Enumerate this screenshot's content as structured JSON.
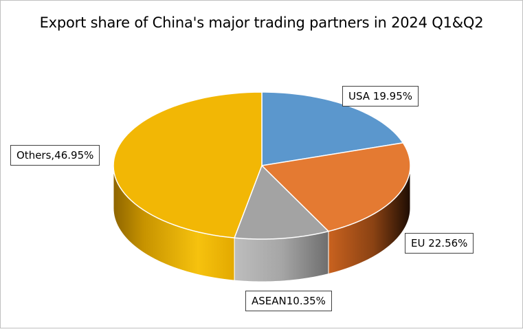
{
  "chart_data": {
    "type": "pie",
    "title": "Export share of China's major trading partners in 2024 Q1&Q2",
    "slices": [
      {
        "name": "USA",
        "value": 19.95,
        "label": "USA 19.95%",
        "color": "#5b97cd",
        "side_color": "#3f6f9c"
      },
      {
        "name": "EU",
        "value": 22.56,
        "label": "EU 22.56%",
        "color": "#e47a32",
        "side_color": "#a9501a"
      },
      {
        "name": "ASEAN",
        "value": 10.35,
        "label": "ASEAN10.35%",
        "color": "#a3a3a3",
        "side_color": "#8a8a8a"
      },
      {
        "name": "Others",
        "value": 46.95,
        "label": "Others,46.95%",
        "color": "#f2b705",
        "side_color": "#c08c00"
      }
    ],
    "style": "3d-pie",
    "legend": "none"
  }
}
